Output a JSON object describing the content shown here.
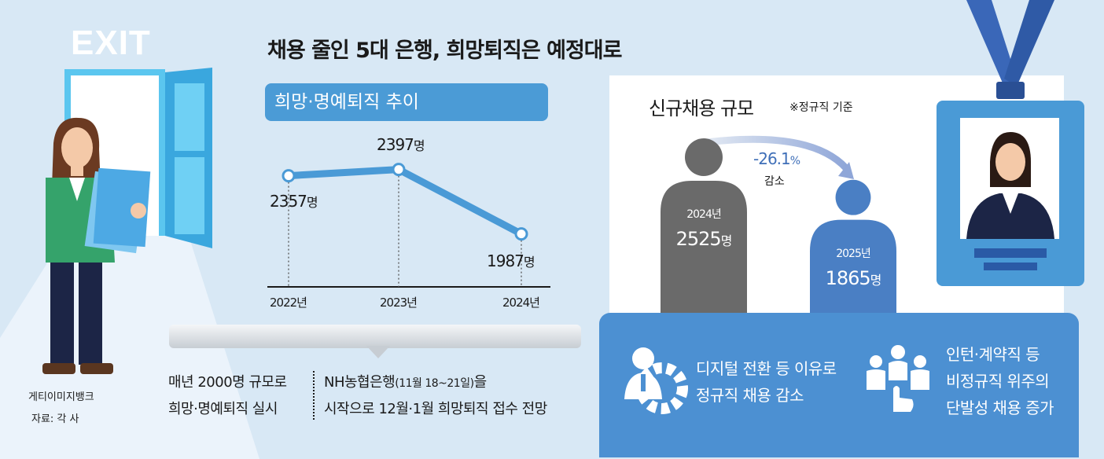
{
  "title": "채용 줄인 5대 은행, 희망퇴직은 예정대로",
  "exit_sign": "EXIT",
  "left_section": {
    "subtitle": "희망·명예퇴직 추이",
    "unit": "명"
  },
  "right_section": {
    "title": "신규채용 규모",
    "note": "※정규직 기준",
    "change": "-26.1",
    "change_unit": "%",
    "change_label": "감소",
    "bar_unit": "명"
  },
  "chart_data": [
    {
      "type": "line",
      "title": "희망·명예퇴직 추이",
      "categories": [
        "2022년",
        "2023년",
        "2024년"
      ],
      "values": [
        2357,
        2397,
        1987
      ],
      "unit": "명",
      "color": "#4a9ad6"
    },
    {
      "type": "bar",
      "title": "신규채용 규모",
      "categories": [
        "2024년",
        "2025년"
      ],
      "values": [
        2525,
        1865
      ],
      "unit": "명",
      "colors": [
        "#6a6a6a",
        "#4a7fc4"
      ]
    }
  ],
  "bottom": {
    "left_line1": "매년 2000명 규모로",
    "left_line2": "희망·명예퇴직 실시",
    "right_line1_a": "NH농협은행",
    "right_line1_b": "(11월 18~21일)",
    "right_line1_c": "을",
    "right_line2": "시작으로 12월·1월 희망퇴직 접수 전망"
  },
  "reasons": [
    {
      "line1": "디지털 전환 등 이유로",
      "line2": "정규직 채용 감소",
      "icon": "gear-person-icon"
    },
    {
      "line1": "인턴·계약직 등",
      "line2": "비정규직 위주의",
      "line3": "단발성 채용 증가",
      "icon": "group-people-icon"
    }
  ],
  "credits": {
    "image": "게티이미지뱅크",
    "source": "자료: 각 사"
  },
  "colors": {
    "background": "#d8e8f5",
    "accent_blue": "#4b9bd6",
    "bar_gray": "#6a6a6a",
    "bar_blue": "#4a7fc4",
    "panel_blue": "#4c90d2",
    "badge_blue": "#4a9ad6"
  }
}
